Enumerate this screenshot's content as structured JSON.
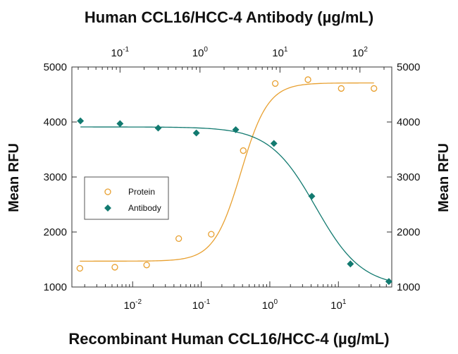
{
  "chart_data": {
    "type": "scatter",
    "title_top": "Human CCL16/HCC-4 Antibody (µg/mL)",
    "xlabel_bottom": "Recombinant Human CCL16/HCC-4 (µg/mL)",
    "ylabel_left": "Mean RFU",
    "ylabel_right": "Mean RFU",
    "ylim": [
      1000,
      5000
    ],
    "y_ticks": [
      "1000",
      "2000",
      "3000",
      "4000",
      "5000"
    ],
    "x_bottom": {
      "scale": "log",
      "lim": [
        0.0013,
        60
      ],
      "ticks": [
        {
          "value": 0.01,
          "base": "10",
          "exp": "-2"
        },
        {
          "value": 0.1,
          "base": "10",
          "exp": "-1"
        },
        {
          "value": 1,
          "base": "10",
          "exp": "0"
        },
        {
          "value": 10,
          "base": "10",
          "exp": "1"
        }
      ]
    },
    "x_top": {
      "scale": "log",
      "lim": [
        0.025,
        250
      ],
      "ticks": [
        {
          "value": 0.1,
          "base": "10",
          "exp": "-1"
        },
        {
          "value": 1,
          "base": "10",
          "exp": "0"
        },
        {
          "value": 10,
          "base": "10",
          "exp": "1"
        },
        {
          "value": 100,
          "base": "10",
          "exp": "2"
        }
      ]
    },
    "legend": {
      "placement": "center-left"
    },
    "series": [
      {
        "name": "Protein",
        "axis": "bottom",
        "color": "#e8a030",
        "marker": "open-circle",
        "x": [
          0.0017,
          0.0055,
          0.016,
          0.047,
          0.14,
          0.41,
          1.2,
          3.6,
          11,
          33
        ],
        "y": [
          1340,
          1360,
          1400,
          1880,
          1960,
          3480,
          4700,
          4770,
          4610,
          4610
        ],
        "fit": {
          "bottom": 1470,
          "top": 4710,
          "ec50": 0.38,
          "hill": 2.2
        }
      },
      {
        "name": "Antibody",
        "axis": "top",
        "color": "#127a70",
        "marker": "filled-diamond",
        "x": [
          0.032,
          0.1,
          0.3,
          0.9,
          2.8,
          8.4,
          25,
          76,
          230
        ],
        "y": [
          4020,
          3970,
          3890,
          3800,
          3860,
          3610,
          2650,
          1420,
          1100
        ],
        "fit": {
          "bottom": 1000,
          "top": 3910,
          "ec50": 28,
          "hill": 1.5
        }
      }
    ]
  }
}
